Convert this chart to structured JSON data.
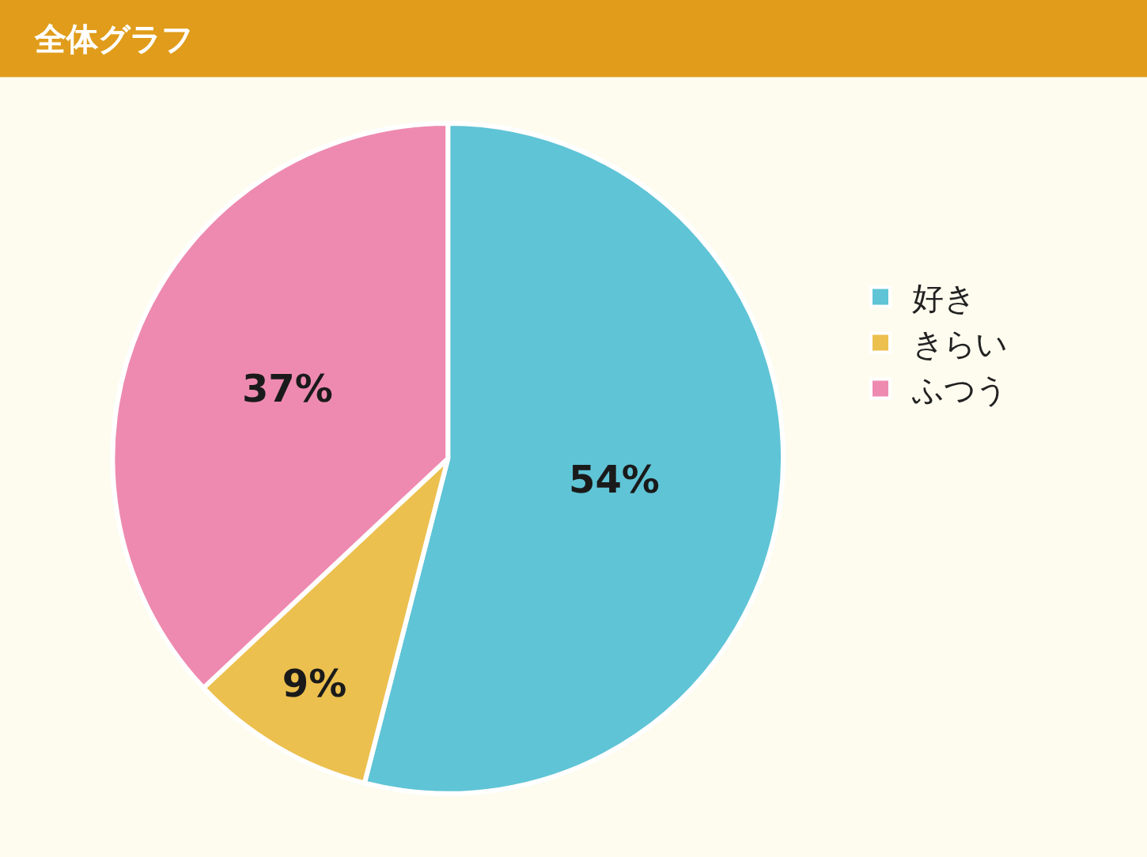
{
  "chart_data": {
    "type": "pie",
    "title": "全体グラフ",
    "categories": [
      "好き",
      "きらい",
      "ふつう"
    ],
    "values": [
      54,
      9,
      37
    ],
    "colors": [
      "#5fc4d6",
      "#ecc04f",
      "#ee8ab0"
    ],
    "value_labels": [
      "54%",
      "9%",
      "37%"
    ],
    "legend": "right"
  }
}
